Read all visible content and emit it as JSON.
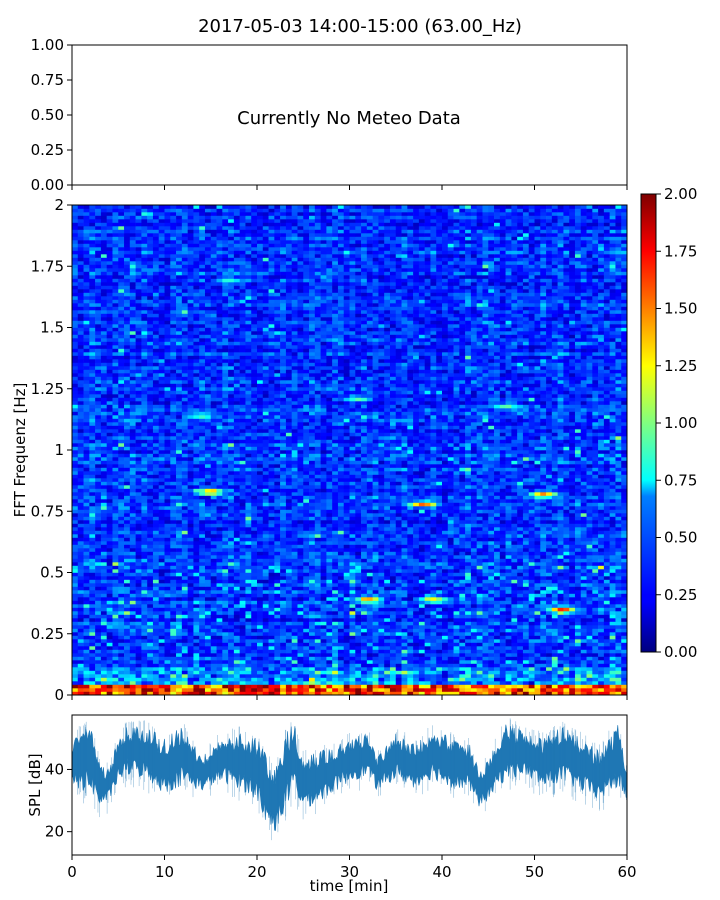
{
  "title": "2017-05-03 14:00-15:00 (63.00_Hz)",
  "chart_data": [
    {
      "type": "line",
      "name": "meteo-panel",
      "ylim": [
        0,
        1
      ],
      "yticks": [
        "0.00",
        "0.25",
        "0.50",
        "0.75",
        "1.00"
      ],
      "message": "Currently No Meteo Data"
    },
    {
      "type": "heatmap",
      "name": "spectrogram",
      "ylabel": "FFT Frequenz [Hz]",
      "ylim": [
        0,
        2
      ],
      "xlim": [
        0,
        60
      ],
      "yticks": [
        "0",
        "0.25",
        "0.5",
        "0.75",
        "1",
        "1.25",
        "1.5",
        "1.75",
        "2"
      ],
      "colorbar": {
        "range": [
          0,
          2
        ],
        "ticks": [
          "0.00",
          "0.25",
          "0.50",
          "0.75",
          "1.00",
          "1.25",
          "1.50",
          "1.75",
          "2.00"
        ],
        "colormap": "jet"
      },
      "value_description": {
        "typical_level": 0.35,
        "low_freq_band_level": 1.7,
        "low_freq_band_max_hz": 0.05
      },
      "hotspots": [
        {
          "t": 15,
          "f": 0.83,
          "v": 1.6
        },
        {
          "t": 31,
          "f": 1.21,
          "v": 0.95
        },
        {
          "t": 32,
          "f": 0.39,
          "v": 1.5
        },
        {
          "t": 38,
          "f": 0.78,
          "v": 1.6
        },
        {
          "t": 39,
          "f": 0.39,
          "v": 1.3
        },
        {
          "t": 47,
          "f": 1.18,
          "v": 0.95
        },
        {
          "t": 53,
          "f": 0.35,
          "v": 1.7
        },
        {
          "t": 51,
          "f": 0.82,
          "v": 1.5
        },
        {
          "t": 14,
          "f": 1.14,
          "v": 0.9
        },
        {
          "t": 17,
          "f": 1.69,
          "v": 0.85
        }
      ]
    },
    {
      "type": "area",
      "name": "spl",
      "ylabel": "SPL [dB]",
      "xlabel": "time [min]",
      "xlim": [
        0,
        60
      ],
      "ylim": [
        12.5,
        57.5
      ],
      "yticks": [
        "20",
        "40"
      ],
      "xticks": [
        "0",
        "10",
        "20",
        "30",
        "40",
        "50",
        "60"
      ],
      "color": "#1f77b4",
      "envelope": {
        "t": [
          0,
          2,
          3,
          4,
          5,
          6,
          8,
          10,
          12,
          14,
          16,
          18,
          20,
          21,
          22,
          23,
          24,
          25,
          27,
          30,
          32,
          33,
          35,
          37,
          39,
          41,
          43,
          44,
          45,
          46,
          47,
          49,
          51,
          53,
          55,
          57,
          59,
          60
        ],
        "low": [
          33,
          33,
          28,
          30,
          36,
          38,
          37,
          32,
          35,
          33,
          36,
          34,
          30,
          22,
          20,
          26,
          33,
          27,
          30,
          36,
          38,
          33,
          37,
          34,
          37,
          34,
          33,
          28,
          30,
          34,
          37,
          38,
          34,
          36,
          33,
          30,
          34,
          30
        ],
        "high": [
          50,
          55,
          42,
          40,
          50,
          54,
          54,
          50,
          54,
          44,
          50,
          52,
          50,
          45,
          40,
          52,
          55,
          44,
          46,
          50,
          52,
          44,
          52,
          48,
          54,
          50,
          48,
          40,
          43,
          50,
          55,
          52,
          50,
          54,
          50,
          46,
          55,
          40
        ]
      }
    }
  ]
}
